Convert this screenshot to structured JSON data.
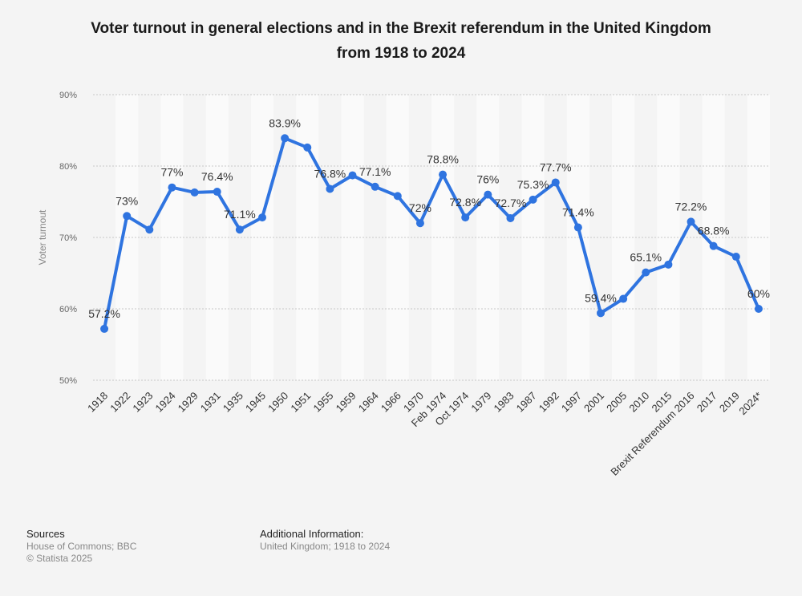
{
  "chart_data": {
    "type": "line",
    "title": "Voter turnout in general elections and in the Brexit referendum in the United Kingdom from 1918 to 2024",
    "title_lines": [
      "Voter turnout in general elections and in the Brexit referendum in the United Kingdom",
      "from 1918 to 2024"
    ],
    "xlabel": "",
    "ylabel": "Voter turnout",
    "ylim": [
      50,
      90
    ],
    "yticks": [
      50,
      60,
      70,
      80,
      90
    ],
    "ytick_labels": [
      "50%",
      "60%",
      "70%",
      "80%",
      "90%"
    ],
    "grid": true,
    "categories": [
      "1918",
      "1922",
      "1923",
      "1924",
      "1929",
      "1931",
      "1935",
      "1945",
      "1950",
      "1951",
      "1955",
      "1959",
      "1964",
      "1966",
      "1970",
      "Feb 1974",
      "Oct 1974",
      "1979",
      "1983",
      "1987",
      "1992",
      "1997",
      "2001",
      "2005",
      "2010",
      "2015",
      "Brexit Referendum 2016",
      "2017",
      "2019",
      "2024*"
    ],
    "series": [
      {
        "name": "Voter turnout",
        "color": "#2f74e0",
        "values": [
          57.2,
          73,
          71.1,
          77,
          76.3,
          76.4,
          71.1,
          72.8,
          83.9,
          82.6,
          76.8,
          78.7,
          77.1,
          75.8,
          72,
          78.8,
          72.8,
          76,
          72.7,
          75.3,
          77.7,
          71.4,
          59.4,
          61.4,
          65.1,
          66.2,
          72.2,
          68.8,
          67.3,
          60
        ]
      }
    ],
    "data_labels": [
      {
        "index": 0,
        "text": "57.2%"
      },
      {
        "index": 1,
        "text": "73%"
      },
      {
        "index": 3,
        "text": "77%"
      },
      {
        "index": 5,
        "text": "76.4%"
      },
      {
        "index": 6,
        "text": "71.1%"
      },
      {
        "index": 8,
        "text": "83.9%"
      },
      {
        "index": 10,
        "text": "76.8%"
      },
      {
        "index": 12,
        "text": "77.1%"
      },
      {
        "index": 14,
        "text": "72%"
      },
      {
        "index": 15,
        "text": "78.8%"
      },
      {
        "index": 16,
        "text": "72.8%"
      },
      {
        "index": 17,
        "text": "76%"
      },
      {
        "index": 18,
        "text": "72.7%"
      },
      {
        "index": 19,
        "text": "75.3%"
      },
      {
        "index": 20,
        "text": "77.7%"
      },
      {
        "index": 21,
        "text": "71.4%"
      },
      {
        "index": 22,
        "text": "59.4%"
      },
      {
        "index": 24,
        "text": "65.1%"
      },
      {
        "index": 26,
        "text": "72.2%"
      },
      {
        "index": 27,
        "text": "68.8%"
      },
      {
        "index": 29,
        "text": "60%"
      }
    ]
  },
  "footer": {
    "sources_heading": "Sources",
    "sources_text": "House of Commons; BBC",
    "copyright": "© Statista 2025",
    "info_heading": "Additional Information:",
    "info_text": "United Kingdom; 1918 to 2024"
  },
  "colors": {
    "background": "#f4f4f4",
    "band": "#fafafa",
    "grid": "#c8c8c8",
    "line": "#2f74e0"
  }
}
